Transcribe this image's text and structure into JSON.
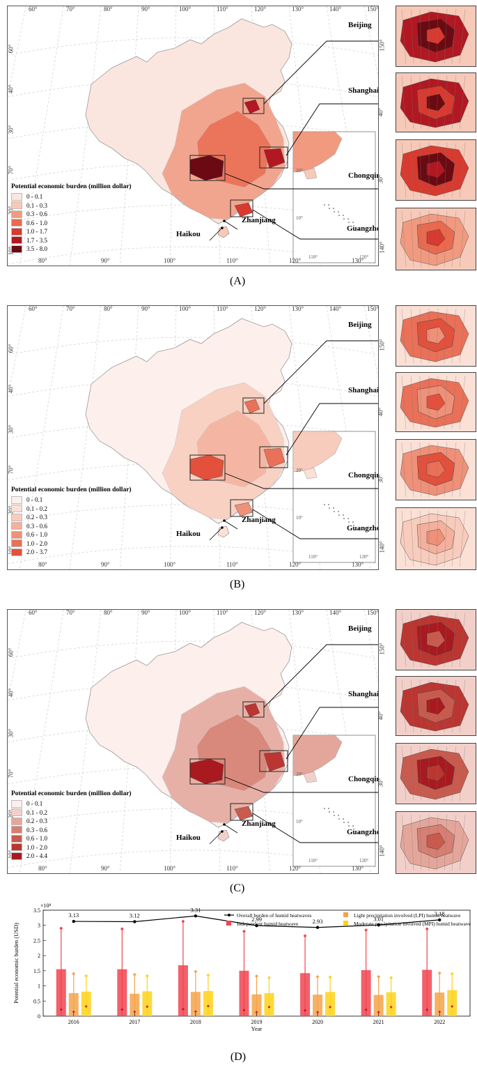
{
  "panels": [
    {
      "label": "(A)",
      "legend_title": "Potential economic burden (million dollar)",
      "legend": [
        {
          "range": "0 - 0.1",
          "color": "#fbe6df"
        },
        {
          "range": "0.1 - 0.3",
          "color": "#f7c9b8"
        },
        {
          "range": "0.3 - 0.6",
          "color": "#f19a80"
        },
        {
          "range": "0.6 - 1.0",
          "color": "#ea6a4f"
        },
        {
          "range": "1.0 - 1.7",
          "color": "#d83a2f"
        },
        {
          "range": "1.7 - 3.5",
          "color": "#b11822"
        },
        {
          "range": "3.5 - 8.0",
          "color": "#6b0a12"
        }
      ],
      "cities": [
        "Beijing",
        "Shanghai",
        "Chongqing",
        "Guangzhou",
        "Zhanjiang",
        "Haikou"
      ]
    },
    {
      "label": "(B)",
      "legend_title": "Potential economic burden (million dollar)",
      "legend": [
        {
          "range": "0 - 0.1",
          "color": "#fdf0ec"
        },
        {
          "range": "0.1 - 0.2",
          "color": "#fbe0d6"
        },
        {
          "range": "0.2 - 0.3",
          "color": "#f8ccbd"
        },
        {
          "range": "0.3 - 0.6",
          "color": "#f4b09c"
        },
        {
          "range": "0.6 - 1.0",
          "color": "#ef9079"
        },
        {
          "range": "1.0 - 2.0",
          "color": "#ea7058"
        },
        {
          "range": "2.0 - 3.7",
          "color": "#e3503b"
        }
      ],
      "cities": [
        "Beijing",
        "Shanghai",
        "Chongqing",
        "Guangzhou",
        "Zhanjiang",
        "Haikou"
      ]
    },
    {
      "label": "(C)",
      "legend_title": "Potential economic burden (million dollar)",
      "legend": [
        {
          "range": "0 - 0.1",
          "color": "#fcefec"
        },
        {
          "range": "0.1 - 0.2",
          "color": "#f2d0c9"
        },
        {
          "range": "0.2 - 0.3",
          "color": "#e4a69b"
        },
        {
          "range": "0.3 - 0.6",
          "color": "#d67f72"
        },
        {
          "range": "0.6 - 1.0",
          "color": "#c95a4e"
        },
        {
          "range": "1.0 - 2.0",
          "color": "#bb3531"
        },
        {
          "range": "2.0 - 4.4",
          "color": "#a81a1f"
        }
      ],
      "cities": [
        "Beijing",
        "Shanghai",
        "Chongqing",
        "Guangzhou",
        "Zhanjiang",
        "Haikou"
      ]
    }
  ],
  "map_grid": {
    "top_lon": [
      "60°",
      "70°",
      "80°",
      "90°",
      "100°",
      "110°",
      "120°",
      "130°",
      "140°",
      "150°"
    ],
    "bottom_lon": [
      "80°",
      "90°",
      "100°",
      "110°",
      "120°",
      "130°"
    ],
    "left_lat": [
      "60°",
      "40°",
      "30°",
      "70°",
      "20°",
      "10°"
    ],
    "right_lat": [
      "150°",
      "40°",
      "30°",
      "140°",
      "20°",
      "10°"
    ],
    "sea_lon": [
      "110°",
      "120°"
    ],
    "sea_lat": [
      "20°",
      "10°"
    ]
  },
  "chart_data": {
    "type": "bar",
    "label": "(D)",
    "categories": [
      "2016",
      "2017",
      "2018",
      "2019",
      "2020",
      "2021",
      "2022"
    ],
    "xlabel": "Year",
    "ylabel": "Potential economic burden (USD)",
    "y_multiplier": "×10⁸",
    "ylim": [
      0,
      3.5
    ],
    "yticks": [
      "0",
      "0.5",
      "1",
      "1.5",
      "2",
      "2.5",
      "3",
      "3.5"
    ],
    "series": [
      {
        "name": "Independent humid heatwave",
        "type": "bar",
        "color": "#f0444f",
        "values": [
          1.55,
          1.55,
          1.68,
          1.5,
          1.42,
          1.52,
          1.53
        ],
        "upper": [
          2.9,
          2.88,
          3.13,
          2.8,
          2.65,
          2.84,
          2.88
        ],
        "lower": [
          0.22,
          0.22,
          0.23,
          0.2,
          0.19,
          0.21,
          0.21
        ]
      },
      {
        "name": "Light precipitation involved (LPI) humid heatwave",
        "type": "bar",
        "color": "#f5a34a",
        "values": [
          0.76,
          0.74,
          0.8,
          0.72,
          0.71,
          0.7,
          0.78
        ],
        "upper": [
          1.4,
          1.37,
          1.47,
          1.32,
          1.3,
          1.3,
          1.42
        ],
        "lower": [
          0.14,
          0.14,
          0.15,
          0.13,
          0.13,
          0.13,
          0.14
        ]
      },
      {
        "name": "Moderate precipitation involved (MPI) humid heatwave",
        "type": "bar",
        "color": "#ffd21a",
        "values": [
          0.81,
          0.82,
          0.83,
          0.76,
          0.8,
          0.79,
          0.86
        ],
        "upper": [
          1.33,
          1.33,
          1.35,
          1.27,
          1.29,
          1.27,
          1.4
        ],
        "lower": [
          0.32,
          0.31,
          0.33,
          0.3,
          0.3,
          0.3,
          0.32
        ]
      },
      {
        "name": "Overall burden of humid heatwaves",
        "type": "line",
        "color": "#000000",
        "values": [
          3.13,
          3.12,
          3.31,
          2.99,
          2.93,
          3.01,
          3.18
        ],
        "data_labels": [
          "3.13",
          "3.12",
          "3.31",
          "2.99",
          "2.93",
          "3.01",
          "3.18"
        ]
      }
    ],
    "legend_position": "top-right"
  }
}
